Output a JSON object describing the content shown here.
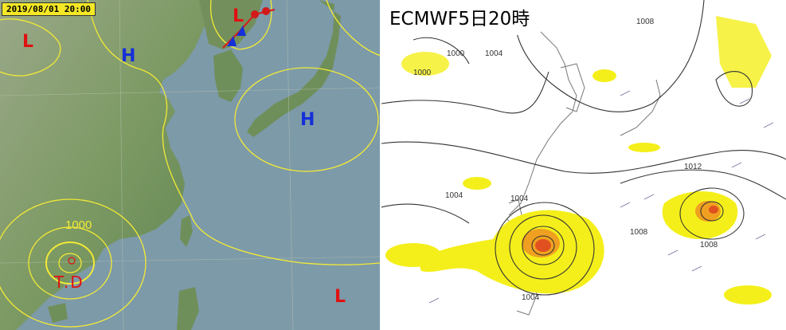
{
  "left_map": {
    "datetime": "2019/08/01 20:00",
    "systems": [
      {
        "type": "L",
        "label": "L"
      },
      {
        "type": "H",
        "label": "H"
      },
      {
        "type": "L",
        "label": "L"
      },
      {
        "type": "H",
        "label": "H"
      },
      {
        "type": "L",
        "label": "L"
      }
    ],
    "isobar_label": "1000",
    "storm_label": "T.D",
    "colors": {
      "land": "#6f8f5a",
      "sea": "#7d9aa9",
      "isobar": "#f2ea36",
      "low": "#e01010",
      "high": "#1530d8"
    }
  },
  "right_map": {
    "title": "ECMWF5日20時",
    "contour_labels": [
      "1000",
      "1004",
      "1000",
      "1004",
      "1004",
      "1012",
      "1008",
      "1008",
      "1004",
      "1008"
    ],
    "colors": {
      "contour": "#333333",
      "shade_yellow": "#f4ef1a",
      "shade_orange": "#f0a020",
      "shade_red": "#e05020"
    }
  }
}
